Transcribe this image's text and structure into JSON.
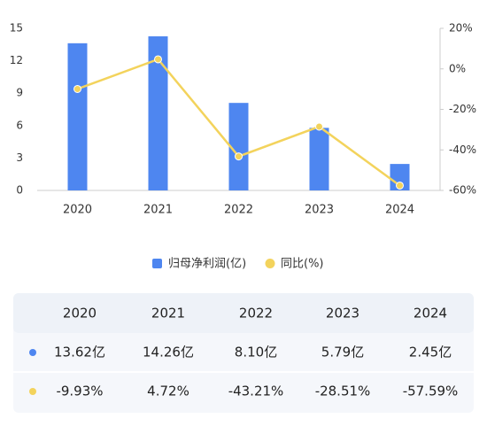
{
  "chart_data": {
    "type": "bar-line",
    "categories": [
      "2020",
      "2021",
      "2022",
      "2023",
      "2024"
    ],
    "series": [
      {
        "name": "归母净利润(亿)",
        "color": "#4e86f0",
        "type": "bar",
        "values": [
          13.62,
          14.26,
          8.1,
          5.79,
          2.45
        ]
      },
      {
        "name": "同比(%)",
        "color": "#f3d35c",
        "type": "line",
        "axis": "y2",
        "values": [
          -9.93,
          4.72,
          -43.21,
          -28.51,
          -57.59
        ]
      }
    ],
    "ylim": [
      0,
      15
    ],
    "yticks": [
      0,
      3,
      6,
      9,
      12,
      15
    ],
    "y2lim": [
      -60,
      20
    ],
    "y2ticks": [
      {
        "value": -60,
        "label": "-60%"
      },
      {
        "value": -40,
        "label": "-40%"
      },
      {
        "value": -20,
        "label": "-20%"
      },
      {
        "value": 0,
        "label": "0%"
      },
      {
        "value": 20,
        "label": "20%"
      }
    ],
    "grid": false,
    "legend": "bottom"
  },
  "table": {
    "header": [
      "2020",
      "2021",
      "2022",
      "2023",
      "2024"
    ],
    "rows": [
      [
        "13.62亿",
        "14.26亿",
        "8.10亿",
        "5.79亿",
        "2.45亿"
      ],
      [
        "-9.93%",
        "4.72%",
        "-43.21%",
        "-28.51%",
        "-57.59%"
      ]
    ]
  }
}
